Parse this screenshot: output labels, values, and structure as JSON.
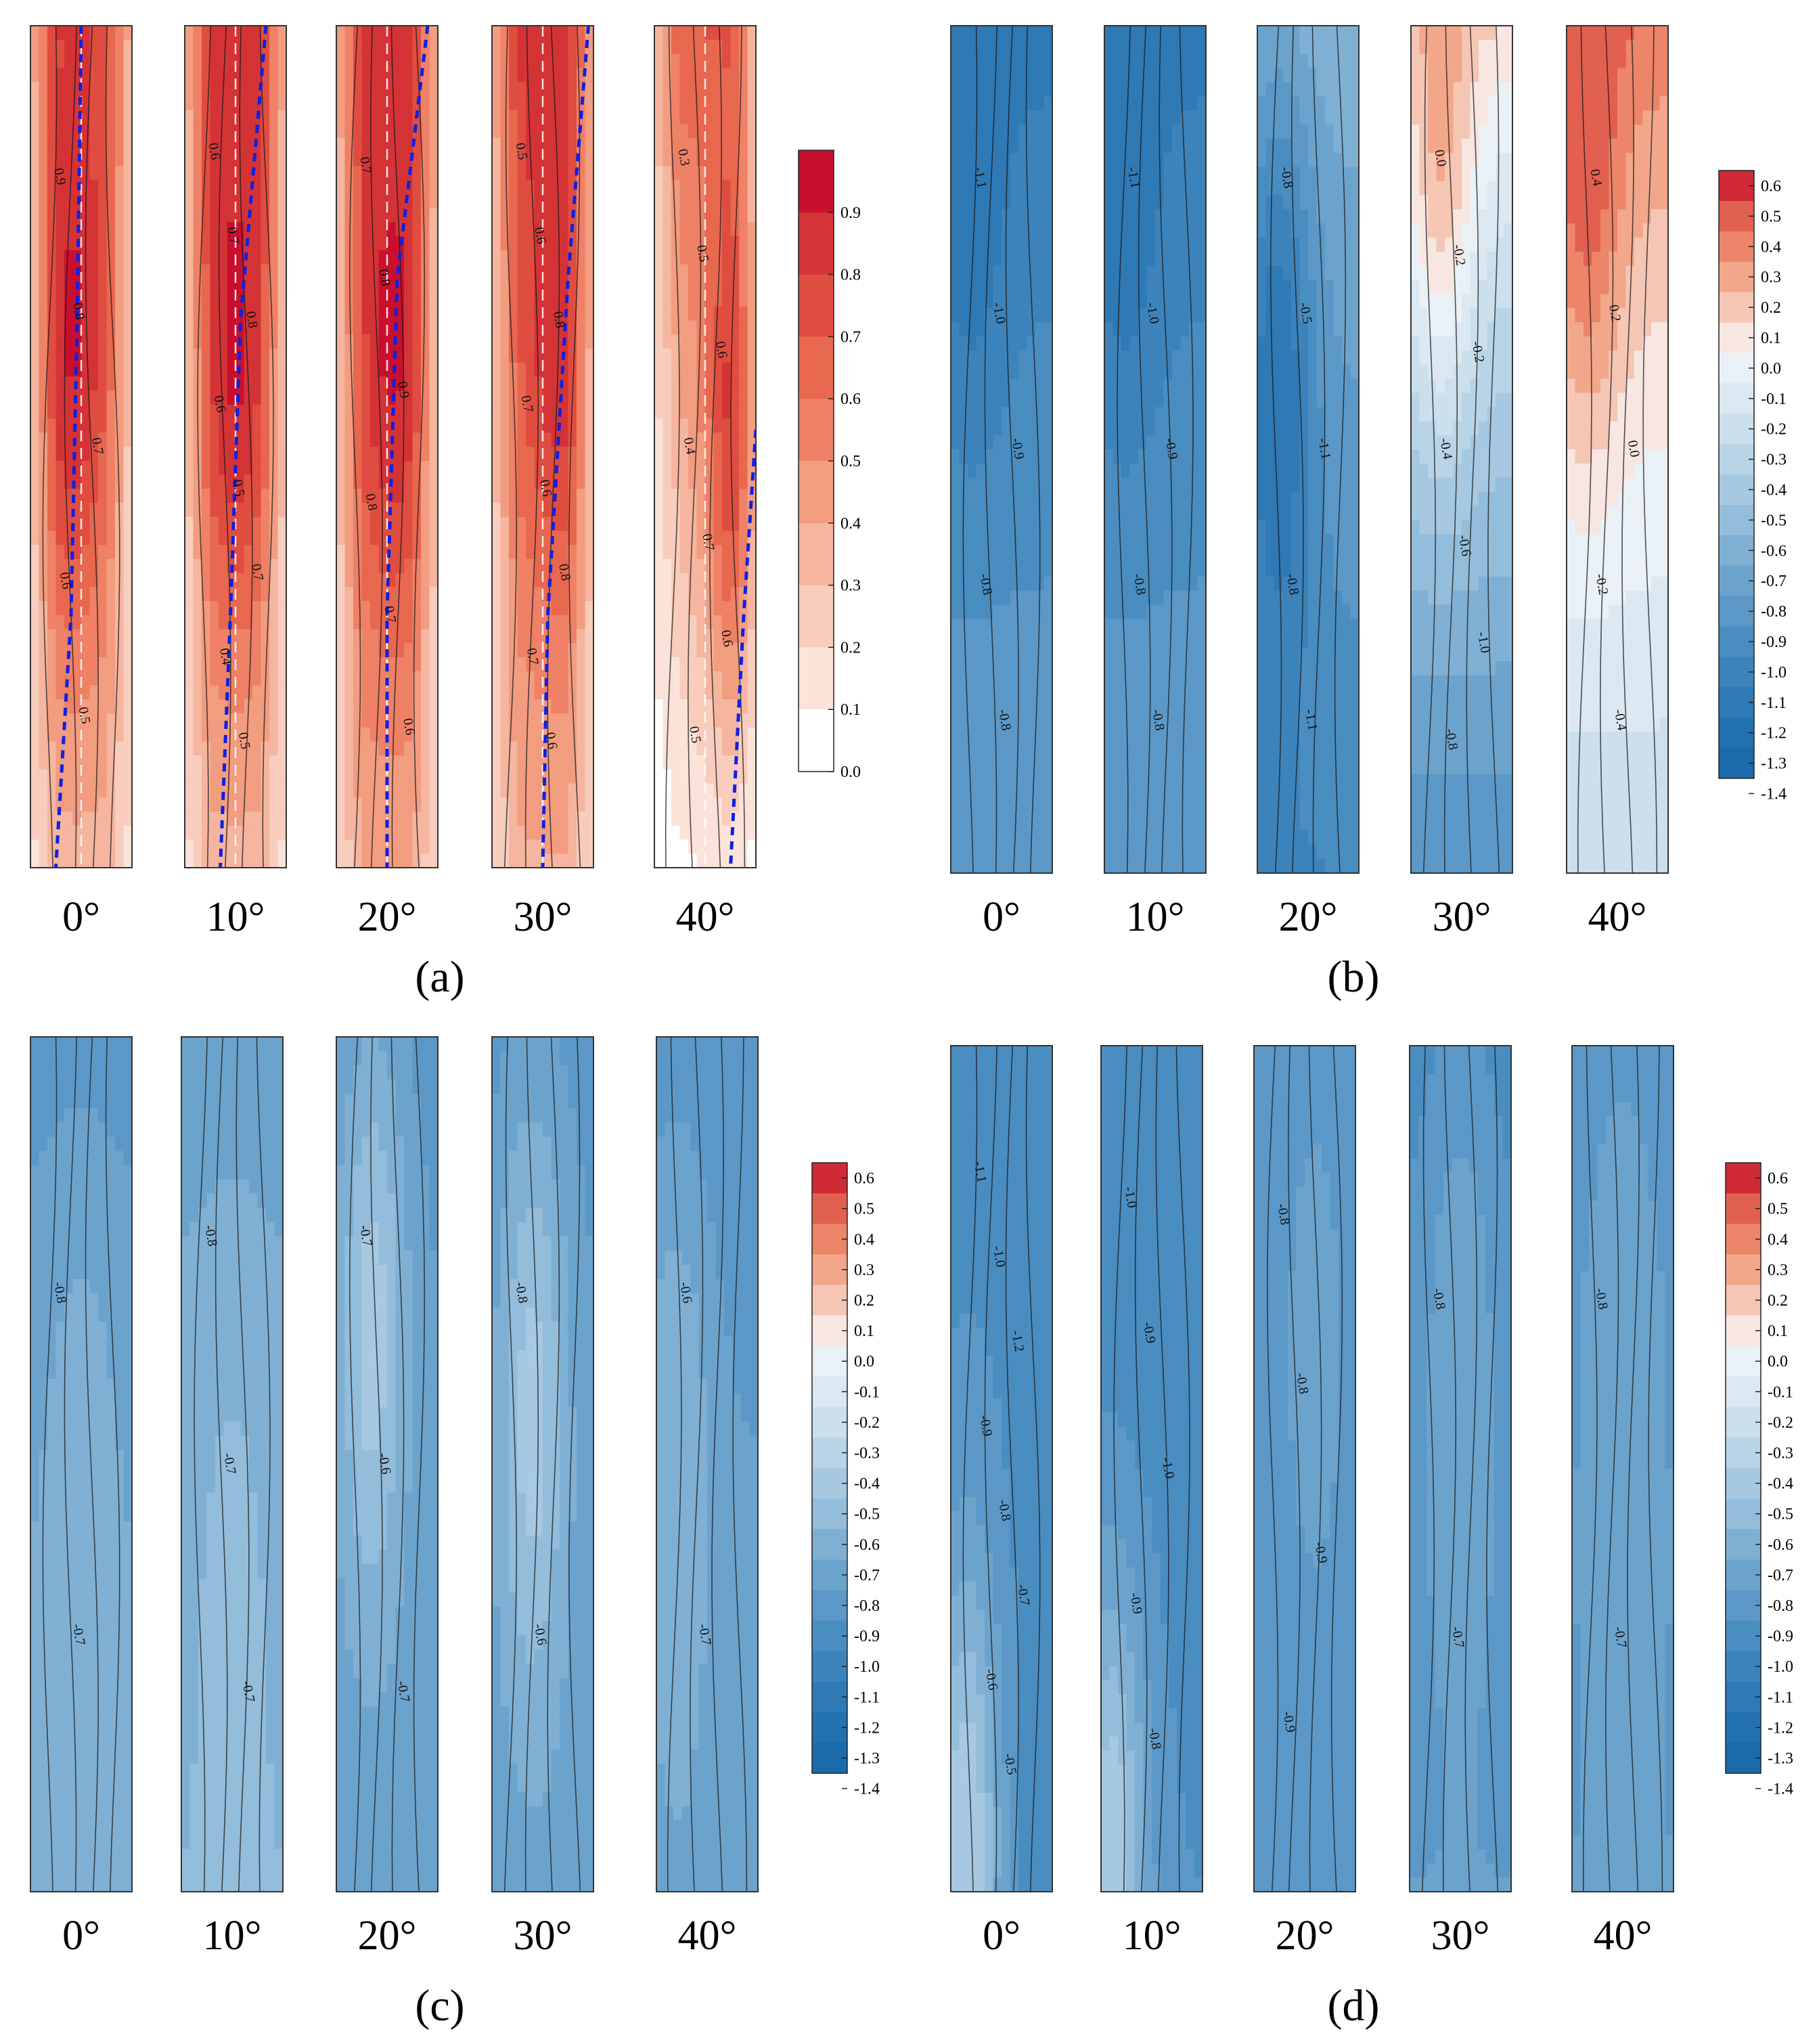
{
  "angles": [
    "0°",
    "10°",
    "20°",
    "30°",
    "40°"
  ],
  "panels": [
    {
      "id": "a",
      "caption": "(a)",
      "scale": "pos",
      "legend_ticks": [
        "0.9",
        "0.8",
        "0.7",
        "0.6",
        "0.5",
        "0.4",
        "0.3",
        "0.2",
        "0.1",
        "0.0"
      ],
      "strips": [
        {
          "angle": "0°",
          "base": 0.35,
          "top": 0.75,
          "peak": 0.92,
          "peak_pos": 0.42,
          "peak_y": 0.35,
          "contour_labels": [
            "0.9",
            "0.8",
            "0.7",
            "0.6",
            "0.5"
          ],
          "trace": [
            [
              0.5,
              0.0
            ],
            [
              0.46,
              0.35
            ],
            [
              0.4,
              0.7
            ],
            [
              0.25,
              1.0
            ]
          ]
        },
        {
          "angle": "10°",
          "base": 0.35,
          "top": 0.78,
          "peak": 0.93,
          "peak_pos": 0.5,
          "peak_y": 0.35,
          "contour_labels": [
            "0.6",
            "0.7",
            "0.8",
            "0.6",
            "0.5",
            "0.7",
            "0.4",
            "0.5"
          ],
          "trace": [
            [
              0.8,
              0.0
            ],
            [
              0.55,
              0.35
            ],
            [
              0.45,
              0.7
            ],
            [
              0.35,
              1.0
            ]
          ]
        },
        {
          "angle": "20°",
          "base": 0.4,
          "top": 0.8,
          "peak": 0.93,
          "peak_pos": 0.55,
          "peak_y": 0.35,
          "contour_labels": [
            "0.7",
            "0.8",
            "0.9",
            "0.8",
            "0.7",
            "0.6"
          ],
          "trace": [
            [
              0.9,
              0.0
            ],
            [
              0.6,
              0.3
            ],
            [
              0.5,
              0.7
            ],
            [
              0.5,
              1.0
            ]
          ]
        },
        {
          "angle": "30°",
          "base": 0.38,
          "top": 0.82,
          "peak": 0.9,
          "peak_pos": 0.65,
          "peak_y": 0.3,
          "contour_labels": [
            "0.5",
            "0.6",
            "0.8",
            "0.7",
            "0.6",
            "0.8",
            "0.7",
            "0.6"
          ],
          "trace": [
            [
              0.95,
              0.0
            ],
            [
              0.75,
              0.3
            ],
            [
              0.55,
              0.7
            ],
            [
              0.5,
              1.0
            ]
          ]
        },
        {
          "angle": "40°",
          "base": 0.08,
          "top": 0.7,
          "peak": 0.88,
          "peak_pos": 0.85,
          "peak_y": 0.45,
          "contour_labels": [
            "0.3",
            "0.5",
            "0.6",
            "0.4",
            "0.7",
            "0.6",
            "0.5"
          ],
          "trace": [
            [
              1.0,
              0.48
            ],
            [
              0.88,
              0.7
            ],
            [
              0.75,
              1.0
            ]
          ]
        }
      ]
    },
    {
      "id": "b",
      "caption": "(b)",
      "scale": "div",
      "legend_ticks": [
        "0.6",
        "0.5",
        "0.4",
        "0.3",
        "0.2",
        "0.1",
        "0.0",
        "-0.1",
        "-0.2",
        "-0.3",
        "-0.4",
        "-0.5",
        "-0.6",
        "-0.7",
        "-0.8",
        "-0.9",
        "-1.0",
        "-1.1",
        "-1.2",
        "-1.3",
        "-1.4"
      ],
      "strips": [
        {
          "angle": "0°",
          "base": -0.8,
          "top": -1.15,
          "peak": -1.2,
          "peak_pos": 0.2,
          "peak_y": 0.1,
          "contour_labels": [
            "-1.1",
            "-1.0",
            "-0.9",
            "-0.8",
            "-0.8"
          ]
        },
        {
          "angle": "10°",
          "base": -0.8,
          "top": -1.15,
          "peak": -1.2,
          "peak_pos": 0.2,
          "peak_y": 0.1,
          "contour_labels": [
            "-1.1",
            "-1.0",
            "-0.9",
            "-0.8",
            "-0.8"
          ]
        },
        {
          "angle": "20°",
          "base": -1.0,
          "top": -0.6,
          "peak": -1.2,
          "peak_pos": 0.2,
          "peak_y": 0.45,
          "contour_labels": [
            "-0.8",
            "-0.5",
            "-1.1",
            "-0.8",
            "-1.1"
          ]
        },
        {
          "angle": "30°",
          "base": -0.9,
          "top": 0.1,
          "peak": 0.25,
          "peak_pos": 0.3,
          "peak_y": 0.05,
          "contour_labels": [
            "0.0",
            "-0.2",
            "-0.2",
            "-0.4",
            "-0.6",
            "-1.0",
            "-0.8"
          ]
        },
        {
          "angle": "40°",
          "base": -0.3,
          "top": 0.4,
          "peak": 0.5,
          "peak_pos": 0.2,
          "peak_y": 0.08,
          "contour_labels": [
            "0.4",
            "0.2",
            "0.0",
            "-0.2",
            "-0.4"
          ]
        }
      ]
    },
    {
      "id": "c",
      "caption": "(c)",
      "scale": "div",
      "legend_ticks": [
        "0.6",
        "0.5",
        "0.4",
        "0.3",
        "0.2",
        "0.1",
        "0.0",
        "-0.1",
        "-0.2",
        "-0.3",
        "-0.4",
        "-0.5",
        "-0.6",
        "-0.7",
        "-0.8",
        "-0.9",
        "-1.0",
        "-1.1",
        "-1.2",
        "-1.3",
        "-1.4"
      ],
      "strips": [
        {
          "angle": "0°",
          "base": -0.65,
          "top": -0.85,
          "peak": -0.6,
          "peak_pos": 0.5,
          "peak_y": 0.6,
          "contour_labels": [
            "-0.8",
            "-0.7"
          ]
        },
        {
          "angle": "10°",
          "base": -0.6,
          "top": -0.75,
          "peak": -0.55,
          "peak_pos": 0.5,
          "peak_y": 0.7,
          "contour_labels": [
            "-0.8",
            "-0.7",
            "-0.7"
          ]
        },
        {
          "angle": "20°",
          "base": -0.75,
          "top": -0.85,
          "peak": -0.45,
          "peak_pos": 0.35,
          "peak_y": 0.35,
          "contour_labels": [
            "-0.7",
            "-0.6",
            "-0.7"
          ]
        },
        {
          "angle": "30°",
          "base": -0.75,
          "top": -0.85,
          "peak": -0.45,
          "peak_pos": 0.4,
          "peak_y": 0.45,
          "contour_labels": [
            "-0.8",
            "-0.6"
          ]
        },
        {
          "angle": "40°",
          "base": -0.72,
          "top": -0.9,
          "peak": -0.6,
          "peak_pos": 0.2,
          "peak_y": 0.5,
          "contour_labels": [
            "-0.6",
            "-0.7"
          ]
        }
      ]
    },
    {
      "id": "d",
      "caption": "(d)",
      "scale": "div",
      "legend_ticks": [
        "0.6",
        "0.5",
        "0.4",
        "0.3",
        "0.2",
        "0.1",
        "0.0",
        "-0.1",
        "-0.2",
        "-0.3",
        "-0.4",
        "-0.5",
        "-0.6",
        "-0.7",
        "-0.8",
        "-0.9",
        "-1.0",
        "-1.1",
        "-1.2",
        "-1.3",
        "-1.4"
      ],
      "strips": [
        {
          "angle": "0°",
          "base": -0.95,
          "top": -0.9,
          "peak": -0.4,
          "peak_pos": 0.15,
          "peak_y": 0.95,
          "contour_labels": [
            "-1.1",
            "-1.0",
            "-1.2",
            "-0.9",
            "-0.8",
            "-0.7",
            "-0.6",
            "-0.5"
          ]
        },
        {
          "angle": "10°",
          "base": -0.9,
          "top": -1.0,
          "peak": -0.4,
          "peak_pos": 0.1,
          "peak_y": 0.98,
          "contour_labels": [
            "-1.0",
            "-0.9",
            "-1.0",
            "-0.9",
            "-0.8"
          ]
        },
        {
          "angle": "20°",
          "base": -0.85,
          "top": -0.9,
          "peak": -0.75,
          "peak_pos": 0.6,
          "peak_y": 0.35,
          "contour_labels": [
            "-0.8",
            "-0.8",
            "-0.9",
            "-0.9"
          ]
        },
        {
          "angle": "30°",
          "base": -0.8,
          "top": -0.95,
          "peak": -0.7,
          "peak_pos": 0.5,
          "peak_y": 0.4,
          "contour_labels": [
            "-0.8",
            "-0.7"
          ]
        },
        {
          "angle": "40°",
          "base": -0.8,
          "top": -0.85,
          "peak": -0.7,
          "peak_pos": 0.5,
          "peak_y": 0.45,
          "contour_labels": [
            "-0.8",
            "-0.7"
          ]
        }
      ]
    }
  ],
  "chart_data": [
    {
      "type": "heatmap",
      "panel": "(a)",
      "categories": [
        "0°",
        "10°",
        "20°",
        "30°",
        "40°"
      ],
      "colorbar_range": [
        0.0,
        0.9
      ],
      "colorbar_ticks": [
        0.9,
        0.8,
        0.7,
        0.6,
        0.5,
        0.4,
        0.3,
        0.2,
        0.1,
        0.0
      ],
      "colors": {
        "max": "#c8102e",
        "mid": "#f4a582",
        "min": "#ffffff"
      }
    },
    {
      "type": "heatmap",
      "panel": "(b)",
      "categories": [
        "0°",
        "10°",
        "20°",
        "30°",
        "40°"
      ],
      "colorbar_range": [
        -1.4,
        0.6
      ],
      "colorbar_ticks": [
        0.6,
        0.5,
        0.4,
        0.3,
        0.2,
        0.1,
        0.0,
        -0.1,
        -0.2,
        -0.3,
        -0.4,
        -0.5,
        -0.6,
        -0.7,
        -0.8,
        -0.9,
        -1.0,
        -1.1,
        -1.2,
        -1.3,
        -1.4
      ]
    },
    {
      "type": "heatmap",
      "panel": "(c)",
      "categories": [
        "0°",
        "10°",
        "20°",
        "30°",
        "40°"
      ],
      "colorbar_range": [
        -1.4,
        0.6
      ],
      "colorbar_ticks": [
        0.6,
        0.5,
        0.4,
        0.3,
        0.2,
        0.1,
        0.0,
        -0.1,
        -0.2,
        -0.3,
        -0.4,
        -0.5,
        -0.6,
        -0.7,
        -0.8,
        -0.9,
        -1.0,
        -1.1,
        -1.2,
        -1.3,
        -1.4
      ]
    },
    {
      "type": "heatmap",
      "panel": "(d)",
      "categories": [
        "0°",
        "10°",
        "20°",
        "30°",
        "40°"
      ],
      "colorbar_range": [
        -1.4,
        0.6
      ],
      "colorbar_ticks": [
        0.6,
        0.5,
        0.4,
        0.3,
        0.2,
        0.1,
        0.0,
        -0.1,
        -0.2,
        -0.3,
        -0.4,
        -0.5,
        -0.6,
        -0.7,
        -0.8,
        -0.9,
        -1.0,
        -1.1,
        -1.2,
        -1.3,
        -1.4
      ]
    }
  ]
}
